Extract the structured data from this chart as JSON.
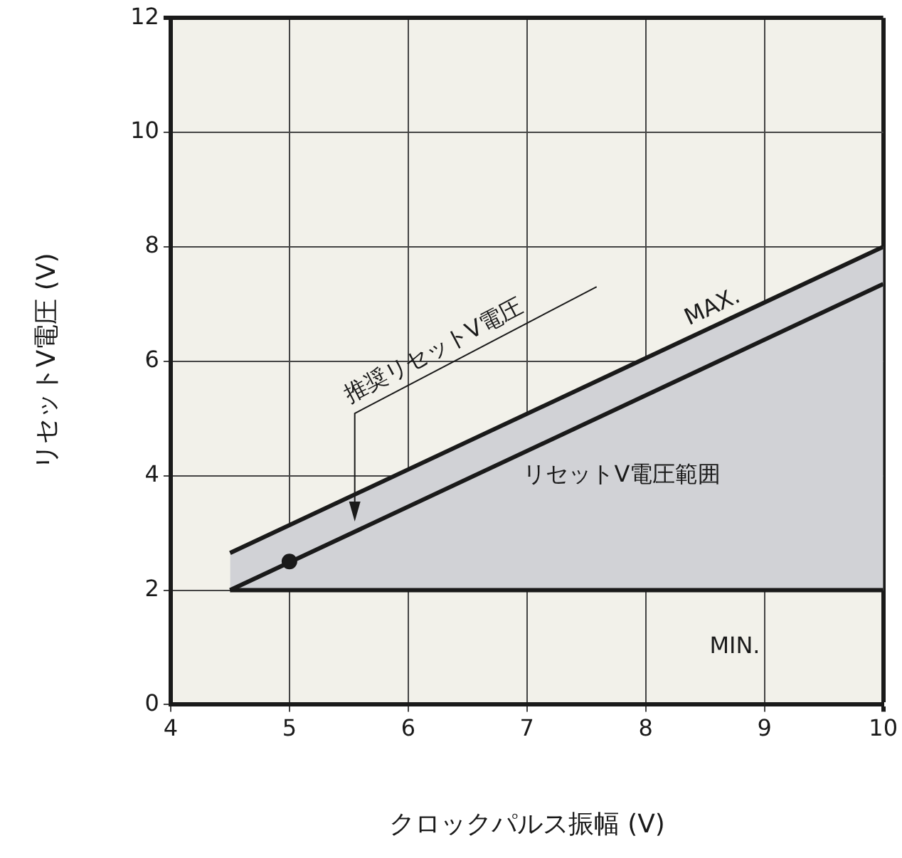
{
  "chart_data": {
    "type": "line",
    "xlabel": "クロックパルス振幅 (V)",
    "ylabel": "リセットV電圧 (V)",
    "x": [
      4.5,
      10
    ],
    "series": [
      {
        "name": "MIN.",
        "color": "#1a1a1a",
        "values": [
          2,
          2
        ]
      },
      {
        "name": "MAX.",
        "type": "area",
        "color": "#d1d2d6",
        "values": [
          2.65,
          8
        ]
      },
      {
        "color": "#1a1a1a",
        "values": [
          2,
          7.35
        ]
      },
      {
        "type": "scatter",
        "color": "#1a1a1a",
        "x": [
          5
        ],
        "values": [
          2.5
        ],
        "marker": "circle"
      }
    ],
    "annotations": [
      "推奨リセットV電圧",
      "リセットV電圧範囲"
    ],
    "xlim": [
      4,
      10
    ],
    "xticks": [
      4,
      5,
      6,
      7,
      8,
      9,
      10
    ],
    "ylim": [
      0,
      12
    ],
    "yticks": [
      0,
      2,
      4,
      6,
      8,
      10,
      12
    ],
    "grid": true,
    "legend": false,
    "marker": "none",
    "line_style": "solid"
  }
}
